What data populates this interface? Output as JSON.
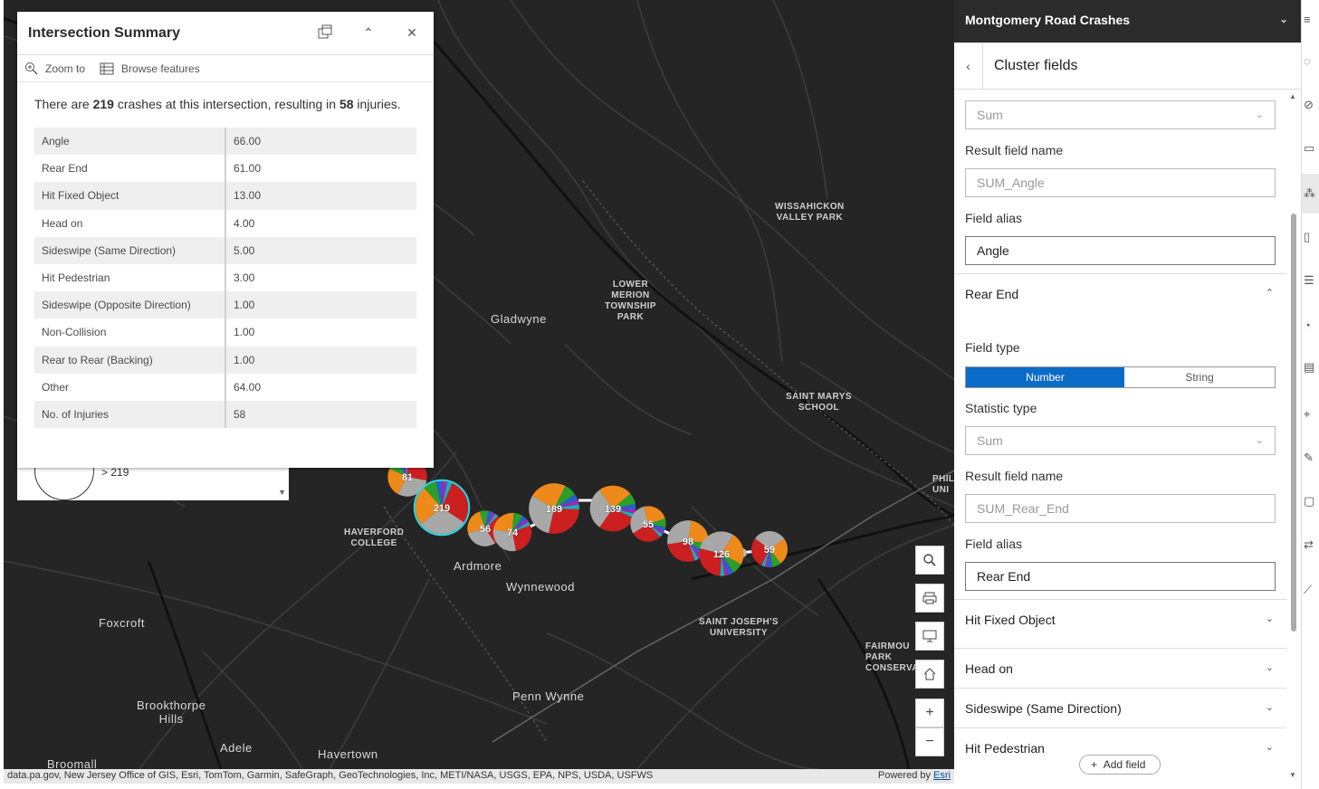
{
  "map": {
    "places": [
      {
        "id": "gladwyne",
        "label": "Gladwyne"
      },
      {
        "id": "ardmore",
        "label": "Ardmore"
      },
      {
        "id": "wynnewood",
        "label": "Wynnewood"
      },
      {
        "id": "foxcroft",
        "label": "Foxcroft"
      },
      {
        "id": "brookthorpe",
        "label": "Brookthorpe\nHills"
      },
      {
        "id": "adele",
        "label": "Adele"
      },
      {
        "id": "havertown",
        "label": "Havertown"
      },
      {
        "id": "pennwynne",
        "label": "Penn Wynne"
      },
      {
        "id": "broomall",
        "label": "Broomall"
      },
      {
        "id": "wissahickon",
        "label": "WISSAHICKON\nVALLEY PARK"
      },
      {
        "id": "lowermerion",
        "label": "LOWER\nMERION\nTOWNSHIP\nPARK"
      },
      {
        "id": "saintmarys",
        "label": "SAINT MARYS\nSCHOOL"
      },
      {
        "id": "haverford",
        "label": "HAVERFORD\nCOLLEGE"
      },
      {
        "id": "saintjosephs",
        "label": "SAINT JOSEPH'S\nUNIVERSITY"
      },
      {
        "id": "fairmount",
        "label": "FAIRMOU\nPARK\nCONSERVA"
      },
      {
        "id": "phila",
        "label": "PHILA\nUNI"
      }
    ],
    "clusters": [
      {
        "count": "81",
        "value": 81,
        "selected": false
      },
      {
        "count": "219",
        "value": 219,
        "selected": true
      },
      {
        "count": "56",
        "value": 56,
        "selected": false
      },
      {
        "count": "74",
        "value": 74,
        "selected": false
      },
      {
        "count": "189",
        "value": 189,
        "selected": false
      },
      {
        "count": "139",
        "value": 139,
        "selected": false
      },
      {
        "count": "55",
        "value": 55,
        "selected": false
      },
      {
        "count": "98",
        "value": 98,
        "selected": false
      },
      {
        "count": "126",
        "value": 126,
        "selected": false
      },
      {
        "count": "59",
        "value": 59,
        "selected": false
      }
    ],
    "colors": {
      "red": "#cc1f1f",
      "gray": "#a8a8a8",
      "orange": "#ee8a1a",
      "green": "#2aa02a",
      "blue": "#2a5fd0",
      "purple": "#a02ab0",
      "teal": "#1ab0c0",
      "selection": "#30d6e6"
    },
    "tools": [
      "search-icon",
      "print-icon",
      "screen-icon",
      "home-icon",
      "plus-icon",
      "minus-icon"
    ],
    "attribution": "data.pa.gov, New Jersey Office of GIS, Esri, TomTom, Garmin, SafeGraph, GeoTechnologies, Inc, METI/NASA, USGS, EPA, NPS, USDA, USFWS",
    "powered_by": "Powered by",
    "powered_by_link": "Esri"
  },
  "popup": {
    "title": "Intersection Summary",
    "zoom_to": "Zoom to",
    "browse_features": "Browse features",
    "desc": {
      "pre": "There are ",
      "crashes": "219",
      "mid": " crashes at this intersection, resulting in ",
      "injuries": "58",
      "post": " injuries."
    },
    "rows": [
      {
        "key": "Angle",
        "value": "66.00"
      },
      {
        "key": "Rear End",
        "value": "61.00"
      },
      {
        "key": "Hit Fixed Object",
        "value": "13.00"
      },
      {
        "key": "Head on",
        "value": "4.00"
      },
      {
        "key": "Sideswipe (Same Direction)",
        "value": "5.00"
      },
      {
        "key": "Hit Pedestrian",
        "value": "3.00"
      },
      {
        "key": "Sideswipe (Opposite Direction)",
        "value": "1.00"
      },
      {
        "key": "Non-Collision",
        "value": "1.00"
      },
      {
        "key": "Rear to Rear (Backing)",
        "value": "1.00"
      },
      {
        "key": "Other",
        "value": "64.00"
      },
      {
        "key": "No. of Injuries",
        "value": "58"
      }
    ]
  },
  "legend": {
    "label": "> 219"
  },
  "panel": {
    "title": "Montgomery Road Crashes",
    "subtitle": "Cluster fields",
    "angle": {
      "statistic_value": "Sum",
      "result_label": "Result field name",
      "result_placeholder": "SUM_Angle",
      "alias_label": "Field alias",
      "alias_value": "Angle"
    },
    "rear_end": {
      "title": "Rear End",
      "field_type_label": "Field type",
      "type_number": "Number",
      "type_string": "String",
      "statistic_label": "Statistic type",
      "statistic_value": "Sum",
      "result_label": "Result field name",
      "result_placeholder": "SUM_Rear_End",
      "alias_label": "Field alias",
      "alias_value": "Rear End"
    },
    "sections": [
      "Hit Fixed Object",
      "Head on",
      "Sideswipe (Same Direction)",
      "Hit Pedestrian"
    ],
    "add_field": "Add field"
  }
}
